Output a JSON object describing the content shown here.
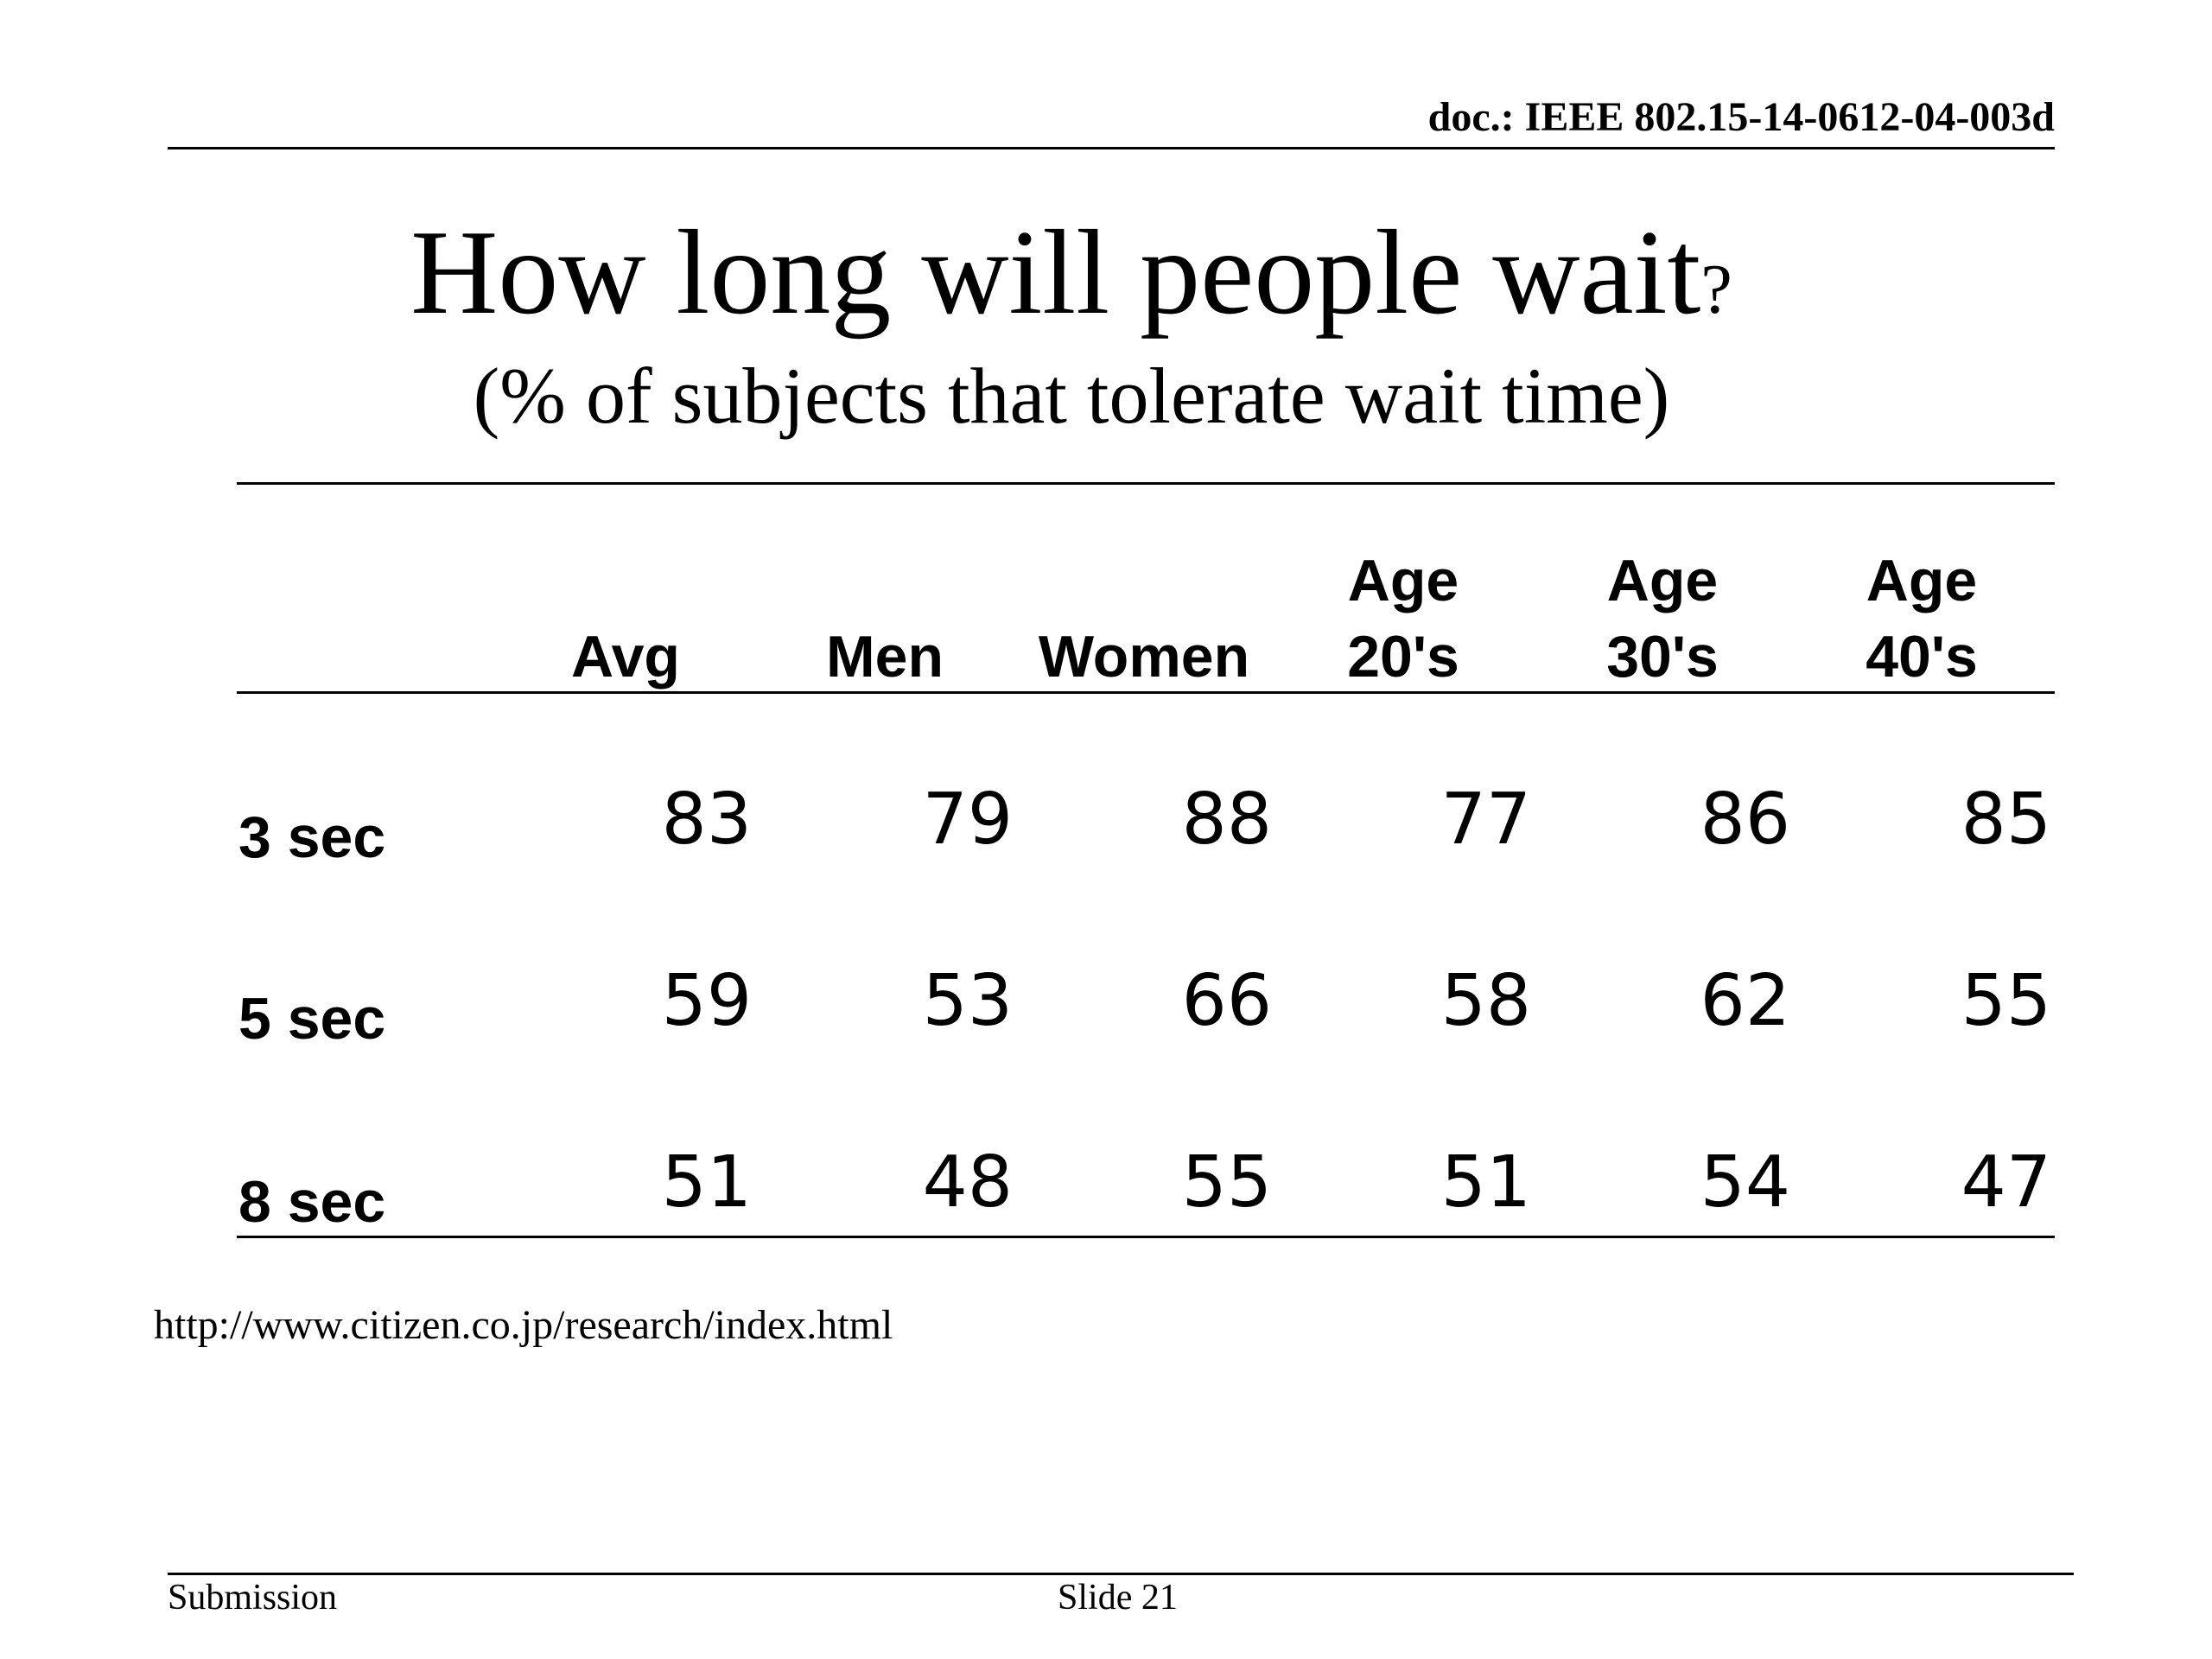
{
  "header": {
    "doc_id": "doc.: IEEE 802.15-14-0612-04-003d"
  },
  "slide": {
    "title": "How long will people wait",
    "title_mark": "?",
    "subtitle": "(% of subjects that tolerate wait time)"
  },
  "table": {
    "columns": [
      {
        "line1": "Avg",
        "line2": ""
      },
      {
        "line1": "Men",
        "line2": ""
      },
      {
        "line1": "Women",
        "line2": ""
      },
      {
        "line1": "20's",
        "line2": "Age"
      },
      {
        "line1": "30's",
        "line2": "Age"
      },
      {
        "line1": "40's",
        "line2": "Age"
      }
    ],
    "rows": [
      {
        "label": "3 sec",
        "values": [
          "83",
          "79",
          "88",
          "77",
          "86",
          "85"
        ]
      },
      {
        "label": "5 sec",
        "values": [
          "59",
          "53",
          "66",
          "58",
          "62",
          "55"
        ]
      },
      {
        "label": "8 sec",
        "values": [
          "51",
          "48",
          "55",
          "51",
          "54",
          "47"
        ]
      }
    ]
  },
  "source_url": "http://www.citizen.co.jp/research/index.html",
  "footer": {
    "left": "Submission",
    "center": "Slide 21"
  }
}
